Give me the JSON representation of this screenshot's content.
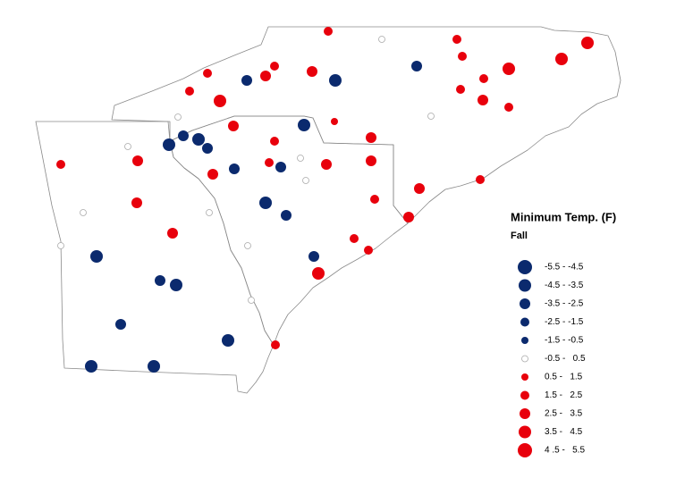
{
  "legend": {
    "title": "Minimum Temp. (F)",
    "subtitle": "Fall",
    "classes": [
      "-5.5 - -4.5",
      "-4.5 - -3.5",
      "-3.5 - -2.5",
      "-2.5 - -1.5",
      "-1.5 - -0.5",
      "-0.5 -   0.5",
      "0.5 -   1.5",
      "1.5 -   2.5",
      "2.5 -   3.5",
      "3.5 -   4.5",
      "4 .5 -   5.5"
    ]
  }
}
